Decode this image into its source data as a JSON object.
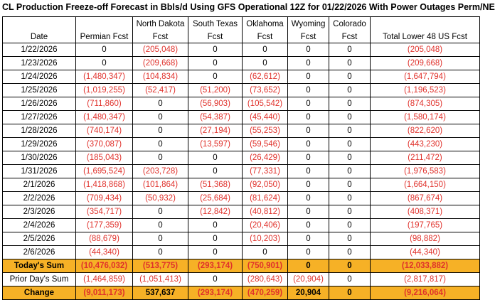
{
  "title": "CL Production Freeze-off Forecast in Bbls/d Using GFS Operational 12Z for 01/22/2026 With Power Outages Perm/NE",
  "columns": [
    {
      "line1": "",
      "line2": "Date"
    },
    {
      "line1": "",
      "line2": "Permian Fcst"
    },
    {
      "line1": "North Dakota",
      "line2": "Fcst"
    },
    {
      "line1": "South Texas",
      "line2": "Fcst"
    },
    {
      "line1": "Oklahoma",
      "line2": "Fcst"
    },
    {
      "line1": "Wyoming",
      "line2": "Fcst"
    },
    {
      "line1": "Colorado",
      "line2": "Fcst"
    },
    {
      "line1": "",
      "line2": "Total Lower 48 US Fcst"
    }
  ],
  "rows": [
    [
      "1/22/2026",
      "0",
      "(205,048)",
      "0",
      "0",
      "0",
      "0",
      "(205,048)"
    ],
    [
      "1/23/2026",
      "0",
      "(209,668)",
      "0",
      "0",
      "0",
      "0",
      "(209,668)"
    ],
    [
      "1/24/2026",
      "(1,480,347)",
      "(104,834)",
      "0",
      "(62,612)",
      "0",
      "0",
      "(1,647,794)"
    ],
    [
      "1/25/2026",
      "(1,019,255)",
      "(52,417)",
      "(51,200)",
      "(73,652)",
      "0",
      "0",
      "(1,196,523)"
    ],
    [
      "1/26/2026",
      "(711,860)",
      "0",
      "(56,903)",
      "(105,542)",
      "0",
      "0",
      "(874,305)"
    ],
    [
      "1/27/2026",
      "(1,480,347)",
      "0",
      "(54,387)",
      "(45,440)",
      "0",
      "0",
      "(1,580,174)"
    ],
    [
      "1/28/2026",
      "(740,174)",
      "0",
      "(27,194)",
      "(55,253)",
      "0",
      "0",
      "(822,620)"
    ],
    [
      "1/29/2026",
      "(370,087)",
      "0",
      "(13,597)",
      "(59,546)",
      "0",
      "0",
      "(443,230)"
    ],
    [
      "1/30/2026",
      "(185,043)",
      "0",
      "0",
      "(26,429)",
      "0",
      "0",
      "(211,472)"
    ],
    [
      "1/31/2026",
      "(1,695,524)",
      "(203,728)",
      "0",
      "(77,331)",
      "0",
      "0",
      "(1,976,583)"
    ],
    [
      "2/1/2026",
      "(1,418,868)",
      "(101,864)",
      "(51,368)",
      "(92,050)",
      "0",
      "0",
      "(1,664,150)"
    ],
    [
      "2/2/2026",
      "(709,434)",
      "(50,932)",
      "(25,684)",
      "(81,624)",
      "0",
      "0",
      "(867,674)"
    ],
    [
      "2/3/2026",
      "(354,717)",
      "0",
      "(12,842)",
      "(40,812)",
      "0",
      "0",
      "(408,371)"
    ],
    [
      "2/4/2026",
      "(177,359)",
      "0",
      "0",
      "(20,406)",
      "0",
      "0",
      "(197,765)"
    ],
    [
      "2/5/2026",
      "(88,679)",
      "0",
      "0",
      "(10,203)",
      "0",
      "0",
      "(98,882)"
    ],
    [
      "2/6/2026",
      "(44,340)",
      "0",
      "0",
      "0",
      "0",
      "0",
      "(44,340)"
    ]
  ],
  "summary": [
    {
      "label": "Today's Sum",
      "values": [
        "(10,476,032)",
        "(513,775)",
        "(293,174)",
        "(750,901)",
        "0",
        "0",
        "(12,033,882)"
      ]
    },
    {
      "label": "Prior Day's Sum",
      "values": [
        "(1,464,859)",
        "(1,051,413)",
        "0",
        "(280,643)",
        "(20,904)",
        "0",
        "(2,817,817)"
      ]
    },
    {
      "label": "Change",
      "values": [
        "(9,011,173)",
        "537,637",
        "(293,174)",
        "(470,259)",
        "20,904",
        "0",
        "(9,216,064)"
      ]
    }
  ],
  "colors": {
    "negative": "#e0312b",
    "highlight": "#f6b126"
  }
}
